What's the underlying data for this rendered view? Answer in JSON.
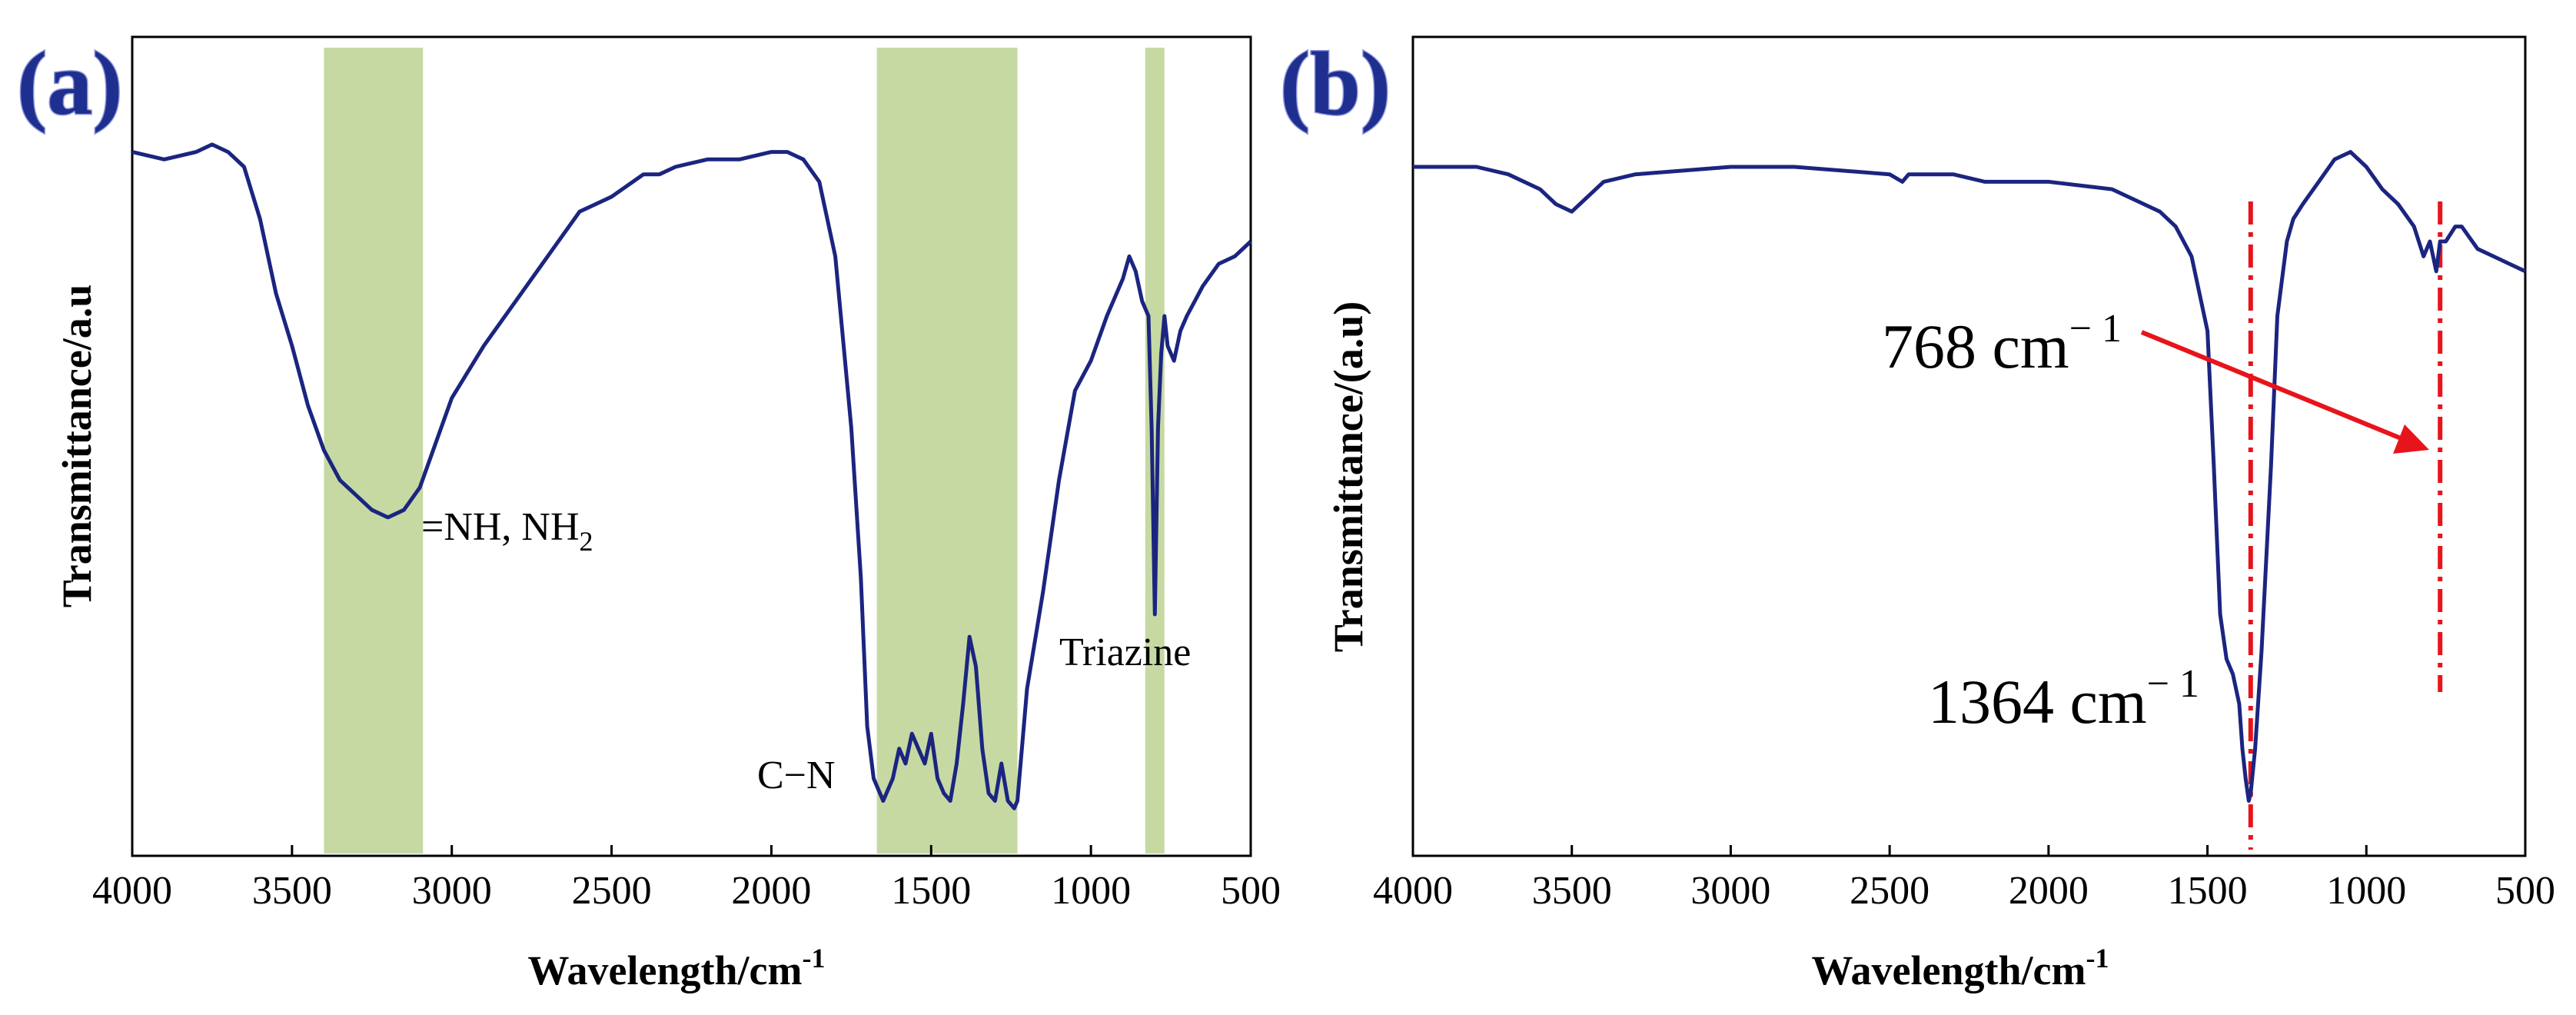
{
  "colors": {
    "spectrum": "#1b2580",
    "band": "#c6d9a3",
    "marker": "#e8141b",
    "panel_label": "#1f2f8f"
  },
  "panels": [
    {
      "label": "(a)",
      "ylabel": "Transmittance/a.u",
      "xlabel": "Wavelength/cm",
      "xlabel_sup": "-1",
      "annotations": {
        "nh": "=NH, NH",
        "nh_sub": "2",
        "cn": "C−N",
        "triazine": "Triazine"
      }
    },
    {
      "label": "(b)",
      "ylabel": "Transmittance/(a.u)",
      "xlabel": "Wavelength/cm",
      "xlabel_sup": "-1",
      "annotations": {
        "peak768": "768 cm",
        "peak768_sup": "− 1",
        "peak1364": "1364 cm",
        "peak1364_sup": "− 1"
      }
    }
  ],
  "chart_data": [
    {
      "type": "line",
      "title": "(a)",
      "xlabel": "Wavelength/cm-1",
      "ylabel": "Transmittance/a.u",
      "xlim": [
        4000,
        500
      ],
      "ylim": [
        0,
        100
      ],
      "x_ticks": [
        4000,
        3500,
        3000,
        2500,
        2000,
        1500,
        1000,
        500
      ],
      "highlight_bands": [
        {
          "from": 3400,
          "to": 3090,
          "label": "=NH, NH2"
        },
        {
          "from": 1670,
          "to": 1230,
          "label": "C−N"
        },
        {
          "from": 830,
          "to": 770,
          "label": "Triazine"
        }
      ],
      "series": [
        {
          "name": "spectrum",
          "x": [
            4000,
            3900,
            3800,
            3750,
            3700,
            3650,
            3600,
            3550,
            3500,
            3450,
            3400,
            3350,
            3300,
            3250,
            3200,
            3150,
            3100,
            3050,
            3000,
            2900,
            2800,
            2700,
            2600,
            2500,
            2400,
            2350,
            2300,
            2200,
            2100,
            2000,
            1950,
            1900,
            1850,
            1800,
            1750,
            1720,
            1700,
            1680,
            1650,
            1620,
            1600,
            1580,
            1560,
            1540,
            1520,
            1500,
            1480,
            1460,
            1440,
            1420,
            1400,
            1380,
            1360,
            1340,
            1320,
            1300,
            1280,
            1260,
            1240,
            1230,
            1200,
            1150,
            1100,
            1050,
            1000,
            950,
            900,
            880,
            860,
            840,
            820,
            810,
            800,
            790,
            780,
            770,
            760,
            740,
            720,
            700,
            650,
            600,
            550,
            500
          ],
          "y": [
            92,
            91,
            92,
            93,
            92,
            90,
            83,
            73,
            66,
            58,
            52,
            48,
            46,
            44,
            43,
            44,
            47,
            53,
            59,
            66,
            72,
            78,
            84,
            86,
            89,
            89,
            90,
            91,
            91,
            92,
            92,
            91,
            88,
            78,
            55,
            35,
            15,
            8,
            5,
            8,
            12,
            10,
            14,
            12,
            10,
            14,
            8,
            6,
            5,
            10,
            18,
            27,
            23,
            12,
            6,
            5,
            10,
            5,
            4,
            5,
            20,
            33,
            48,
            60,
            64,
            70,
            75,
            78,
            76,
            72,
            70,
            55,
            30,
            55,
            65,
            70,
            66,
            64,
            68,
            70,
            74,
            77,
            78,
            80
          ]
        }
      ]
    },
    {
      "type": "line",
      "title": "(b)",
      "xlabel": "Wavelength/cm-1",
      "ylabel": "Transmittance/(a.u)",
      "xlim": [
        4000,
        500
      ],
      "ylim": [
        0,
        100
      ],
      "x_ticks": [
        4000,
        3500,
        3000,
        2500,
        2000,
        1500,
        1000,
        500
      ],
      "markers": [
        {
          "x": 1364,
          "label": "1364 cm− 1"
        },
        {
          "x": 768,
          "label": "768 cm− 1"
        }
      ],
      "series": [
        {
          "name": "spectrum",
          "x": [
            4000,
            3800,
            3700,
            3600,
            3550,
            3500,
            3450,
            3400,
            3300,
            3000,
            2800,
            2500,
            2460,
            2440,
            2300,
            2200,
            2000,
            1800,
            1700,
            1650,
            1600,
            1550,
            1500,
            1480,
            1460,
            1440,
            1420,
            1400,
            1390,
            1380,
            1370,
            1364,
            1350,
            1330,
            1300,
            1280,
            1250,
            1230,
            1200,
            1150,
            1100,
            1050,
            1000,
            950,
            900,
            850,
            820,
            800,
            780,
            768,
            750,
            720,
            700,
            650,
            600,
            550,
            500
          ],
          "y": [
            90,
            90,
            89,
            87,
            85,
            84,
            86,
            88,
            89,
            90,
            90,
            89,
            88,
            89,
            89,
            88,
            88,
            87,
            85,
            84,
            82,
            78,
            68,
            50,
            30,
            24,
            22,
            18,
            12,
            8,
            5,
            6,
            12,
            25,
            50,
            70,
            80,
            83,
            85,
            88,
            91,
            92,
            90,
            87,
            85,
            82,
            78,
            80,
            76,
            80,
            80,
            82,
            82,
            79,
            78,
            77,
            76
          ]
        }
      ]
    }
  ]
}
